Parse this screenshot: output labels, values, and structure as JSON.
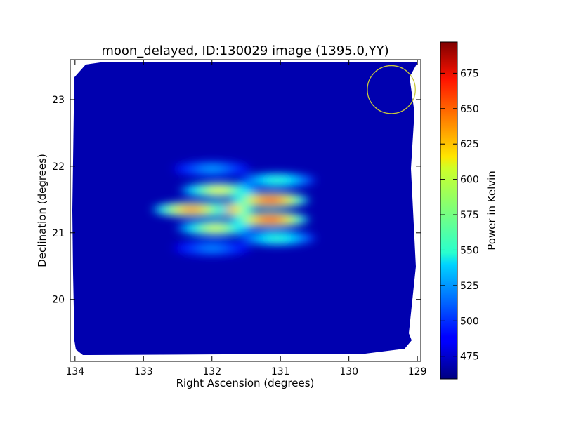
{
  "chart_data": {
    "type": "heatmap",
    "title": "moon_delayed, ID:130029 image (1395.0,YY)",
    "xlabel": "Right Ascension (degrees)",
    "ylabel": "Declination (degrees)",
    "xlim": [
      134.07,
      128.95
    ],
    "ylim": [
      19.07,
      23.6
    ],
    "x_ticks": [
      134,
      133,
      132,
      131,
      130,
      129
    ],
    "y_ticks": [
      20,
      21,
      22,
      23
    ],
    "colorbar": {
      "label": "Power in Kelvin",
      "range": [
        459,
        697
      ],
      "ticks": [
        475,
        500,
        525,
        550,
        575,
        600,
        625,
        650,
        675
      ],
      "colormap": "jet"
    },
    "background_level": 470,
    "sources": [
      {
        "ra": 131.95,
        "dec": 21.35,
        "peak": 690
      },
      {
        "ra": 132.3,
        "dec": 21.35,
        "peak": 640
      },
      {
        "ra": 131.9,
        "dec": 21.64,
        "peak": 605
      },
      {
        "ra": 131.95,
        "dec": 21.07,
        "peak": 600
      },
      {
        "ra": 131.15,
        "dec": 21.49,
        "peak": 665
      },
      {
        "ra": 131.15,
        "dec": 21.2,
        "peak": 665
      },
      {
        "ra": 131.05,
        "dec": 21.79,
        "peak": 560
      },
      {
        "ra": 131.05,
        "dec": 20.92,
        "peak": 560
      },
      {
        "ra": 132.0,
        "dec": 21.96,
        "peak": 525
      },
      {
        "ra": 132.0,
        "dec": 20.77,
        "peak": 520
      }
    ],
    "beam_circle": {
      "ra": 129.38,
      "dec": 23.15,
      "radius_deg": 0.36,
      "color": "#c8c83c"
    },
    "grid": false
  }
}
